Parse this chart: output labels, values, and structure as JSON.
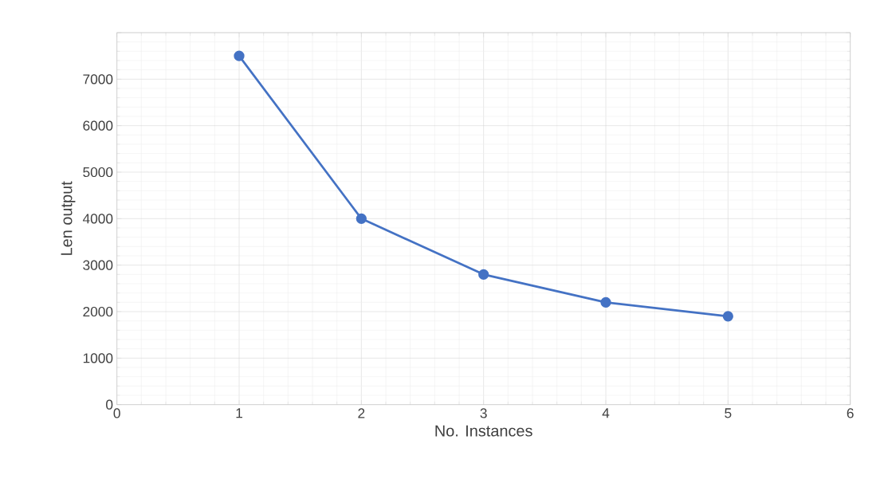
{
  "chart_data": {
    "type": "line",
    "xlabel": "No. Instances",
    "ylabel": "Len output",
    "x": [
      1,
      2,
      3,
      4,
      5
    ],
    "series": [
      {
        "color": "#4472c4",
        "values": [
          7500,
          4000,
          2800,
          2200,
          1900
        ]
      }
    ],
    "xlim": [
      0,
      6
    ],
    "xticks": [
      0,
      1,
      2,
      3,
      4,
      5,
      6
    ],
    "ylim": [
      0,
      8000
    ],
    "yticks": [
      0,
      1000,
      2000,
      3000,
      4000,
      5000,
      6000,
      7000,
      {
        "value": 8000,
        "label": null
      }
    ],
    "grid": true,
    "marker": "circle",
    "line_style": "solid"
  }
}
